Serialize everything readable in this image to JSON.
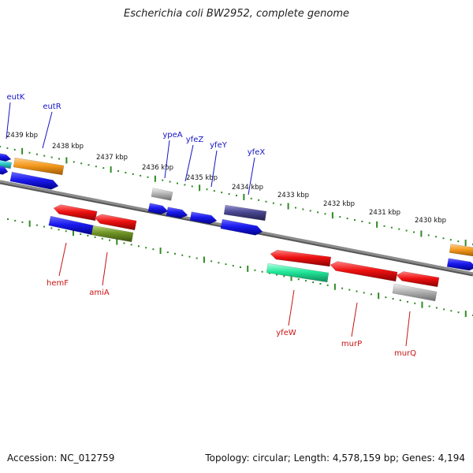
{
  "title": "Escherichia coli BW2952, complete genome",
  "footer": {
    "accession": "Accession: NC_012759",
    "summary": "Topology: circular; Length: 4,578,159 bp; Genes: 4,194"
  },
  "colors": {
    "backbone": "#8c8c8c",
    "tick": "#2e8b22",
    "label_top": "#1414c8",
    "label_bottom": "#c81414",
    "blue": "#1a1aee",
    "red": "#ee1111",
    "orange": "#f59a1e",
    "gray": "#b4b4b4",
    "navy": "#4a4690",
    "olive": "#6f9326",
    "teal": "#22e89a",
    "cyan": "#33cccc"
  },
  "kbp_labels": [
    "2439 kbp",
    "2438 kbp",
    "2437 kbp",
    "2436 kbp",
    "2435 kbp",
    "2434 kbp",
    "2433 kbp",
    "2432 kbp",
    "2431 kbp",
    "2430 kbp"
  ],
  "genes_top": [
    "eutK",
    "eutR",
    "ypeA",
    "yfeZ",
    "yfeY",
    "yfeX"
  ],
  "genes_bottom": [
    "hemF",
    "amiA",
    "yfeW",
    "murP",
    "murQ"
  ]
}
